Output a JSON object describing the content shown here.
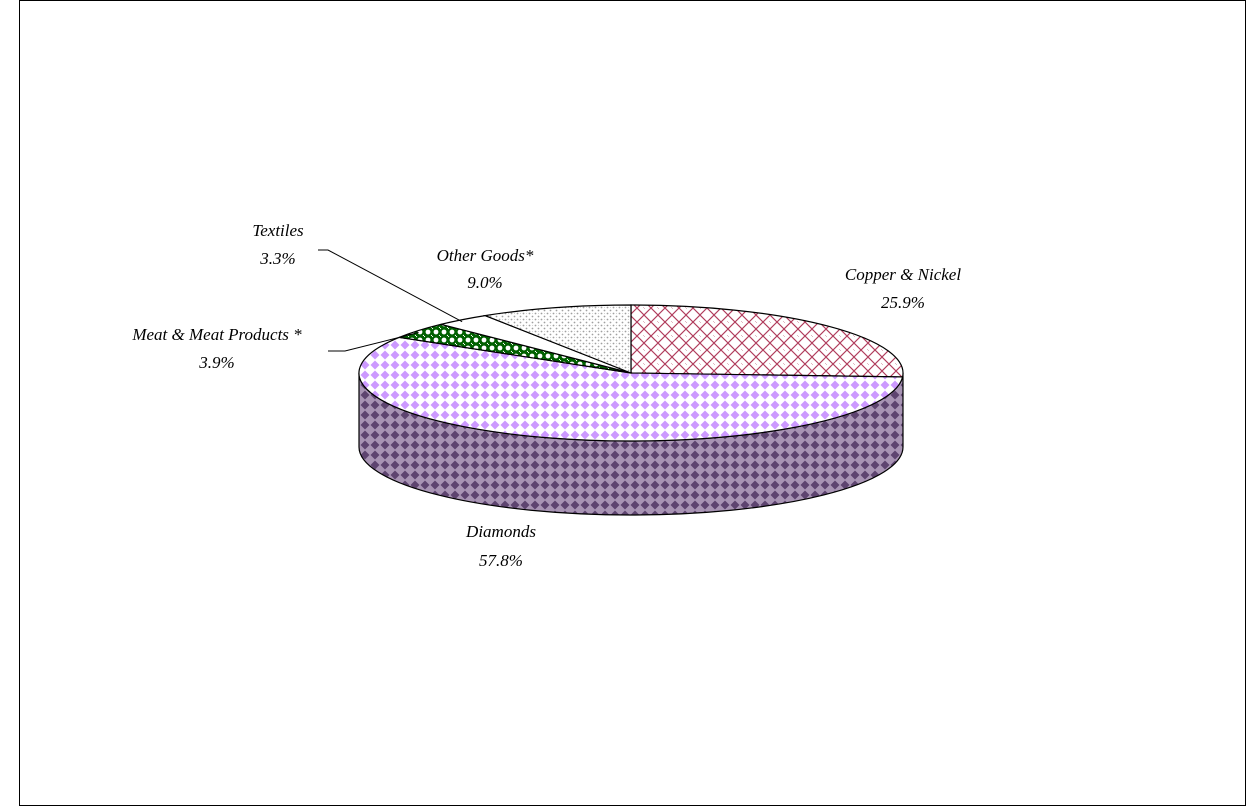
{
  "chart_data": {
    "type": "pie",
    "title": "",
    "slices": [
      {
        "label": "Copper & Nickel",
        "value": 25.9,
        "value_label": "25.9%",
        "pattern": "brick",
        "color": "#c0506a"
      },
      {
        "label": "Diamonds",
        "value": 57.8,
        "value_label": "57.8%",
        "pattern": "diamond",
        "color": "#cc99ff"
      },
      {
        "label": "Meat & Meat Products *",
        "value": 3.9,
        "value_label": "3.9%",
        "pattern": "dots",
        "color": "#008000"
      },
      {
        "label": "Textiles",
        "value": 3.3,
        "value_label": "3.3%",
        "pattern": "solid",
        "color": "#ffffff"
      },
      {
        "label": "Other Goods*",
        "value": 9.0,
        "value_label": "9.0%",
        "pattern": "stipple",
        "color": "#c0c0c0"
      }
    ],
    "side_color": "#7a5e8c",
    "three_d": true,
    "legend": "none"
  }
}
